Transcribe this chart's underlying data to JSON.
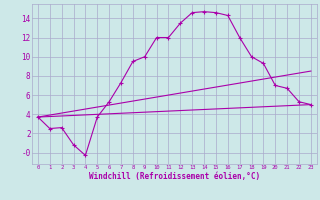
{
  "title": "",
  "xlabel": "Windchill (Refroidissement éolien,°C)",
  "xlim": [
    -0.5,
    23.5
  ],
  "ylim": [
    -1.2,
    15.5
  ],
  "xticks": [
    0,
    1,
    2,
    3,
    4,
    5,
    6,
    7,
    8,
    9,
    10,
    11,
    12,
    13,
    14,
    15,
    16,
    17,
    18,
    19,
    20,
    21,
    22,
    23
  ],
  "yticks": [
    0,
    2,
    4,
    6,
    8,
    10,
    12,
    14
  ],
  "ytick_labels": [
    "-0",
    "2",
    "4",
    "6",
    "8",
    "10",
    "12",
    "14"
  ],
  "background_color": "#cde8e8",
  "grid_color": "#aaaacc",
  "line_color": "#aa00aa",
  "line1_x": [
    0,
    1,
    2,
    3,
    4,
    5,
    6,
    7,
    8,
    9,
    10,
    11,
    12,
    13,
    14,
    15,
    16,
    17,
    18,
    19,
    20,
    21,
    22,
    23
  ],
  "line1_y": [
    3.7,
    2.5,
    2.6,
    0.8,
    -0.3,
    3.7,
    5.3,
    7.3,
    9.5,
    10.0,
    12.0,
    12.0,
    13.5,
    14.6,
    14.7,
    14.6,
    14.3,
    12.0,
    10.0,
    9.3,
    7.0,
    6.7,
    5.3,
    5.0
  ],
  "line2_x": [
    0,
    23
  ],
  "line2_y": [
    3.7,
    8.5
  ],
  "line3_x": [
    0,
    23
  ],
  "line3_y": [
    3.7,
    5.0
  ]
}
